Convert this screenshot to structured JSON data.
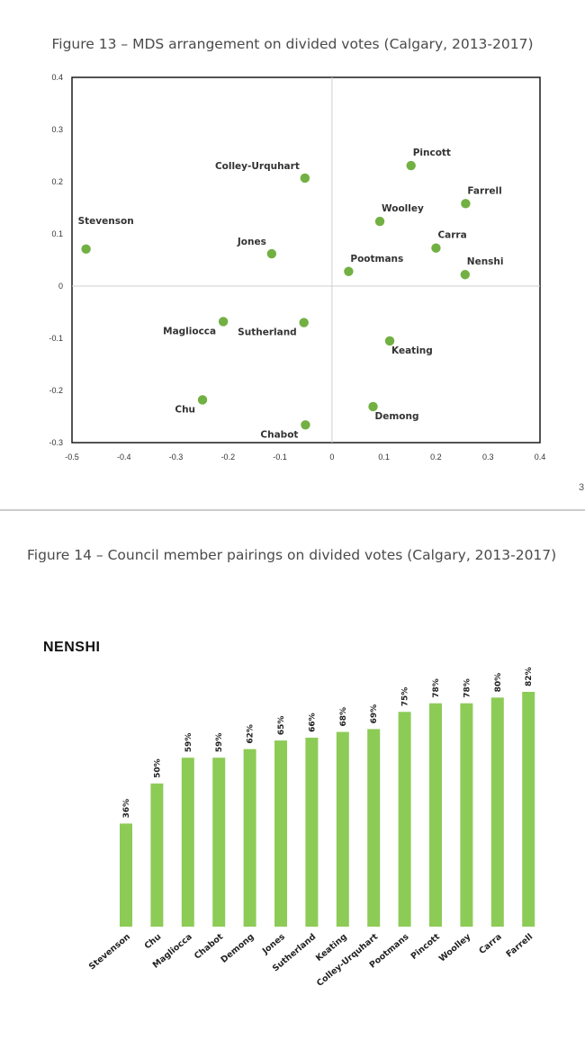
{
  "page": {
    "figure13_title": "Figure 13 – MDS arrangement on divided votes (Calgary, 2013-2017)",
    "figure14_title": "Figure 14 – Council member pairings on divided votes (Calgary, 2013-2017)",
    "page_number": "3",
    "bar_chart_heading": "NENSHI"
  },
  "chart_data": [
    {
      "type": "scatter",
      "title": "Figure 13 – MDS arrangement on divided votes (Calgary, 2013-2017)",
      "xlim": [
        -0.5,
        0.4
      ],
      "ylim": [
        -0.3,
        0.4
      ],
      "xticks": [
        "-0.5",
        "-0.4",
        "-0.3",
        "-0.2",
        "-0.1",
        "0",
        "0.1",
        "0.2",
        "0.3",
        "0.4"
      ],
      "yticks": [
        "0.4",
        "0.3",
        "0.2",
        "0.1",
        "0",
        "-0.1",
        "-0.2",
        "-0.3"
      ],
      "color": "#72b043",
      "points": [
        {
          "name": "Stevenson",
          "x": -0.473,
          "y": 0.071,
          "label_pos": "above"
        },
        {
          "name": "Colley-Urquhart",
          "x": -0.052,
          "y": 0.207,
          "label_pos": "above-left"
        },
        {
          "name": "Pincott",
          "x": 0.152,
          "y": 0.231,
          "label_pos": "above-right"
        },
        {
          "name": "Farrell",
          "x": 0.257,
          "y": 0.158,
          "label_pos": "above-right"
        },
        {
          "name": "Woolley",
          "x": 0.092,
          "y": 0.124,
          "label_pos": "above-right"
        },
        {
          "name": "Jones",
          "x": -0.116,
          "y": 0.062,
          "label_pos": "above-left"
        },
        {
          "name": "Carra",
          "x": 0.2,
          "y": 0.073,
          "label_pos": "above-right"
        },
        {
          "name": "Pootmans",
          "x": 0.032,
          "y": 0.028,
          "label_pos": "above-right"
        },
        {
          "name": "Nenshi",
          "x": 0.256,
          "y": 0.022,
          "label_pos": "above-right"
        },
        {
          "name": "Magliocca",
          "x": -0.209,
          "y": -0.068,
          "label_pos": "below-left"
        },
        {
          "name": "Sutherland",
          "x": -0.054,
          "y": -0.07,
          "label_pos": "below-left"
        },
        {
          "name": "Keating",
          "x": 0.111,
          "y": -0.105,
          "label_pos": "below-right"
        },
        {
          "name": "Chu",
          "x": -0.249,
          "y": -0.218,
          "label_pos": "below-left"
        },
        {
          "name": "Demong",
          "x": 0.079,
          "y": -0.231,
          "label_pos": "below-right"
        },
        {
          "name": "Chabot",
          "x": -0.051,
          "y": -0.266,
          "label_pos": "below-left"
        }
      ]
    },
    {
      "type": "bar",
      "title": "NENSHI",
      "color": "#8dcb57",
      "categories": [
        "Stevenson",
        "Chu",
        "Magliocca",
        "Chabot",
        "Demong",
        "Jones",
        "Sutherland",
        "Keating",
        "Colley-Urquhart",
        "Pootmans",
        "Pincott",
        "Woolley",
        "Carra",
        "Farrell"
      ],
      "values": [
        36,
        50,
        59,
        59,
        62,
        65,
        66,
        68,
        69,
        75,
        78,
        78,
        80,
        82
      ],
      "value_labels": [
        "36%",
        "50%",
        "59%",
        "59%",
        "62%",
        "65%",
        "66%",
        "68%",
        "69%",
        "75%",
        "78%",
        "78%",
        "80%",
        "82%"
      ]
    }
  ]
}
